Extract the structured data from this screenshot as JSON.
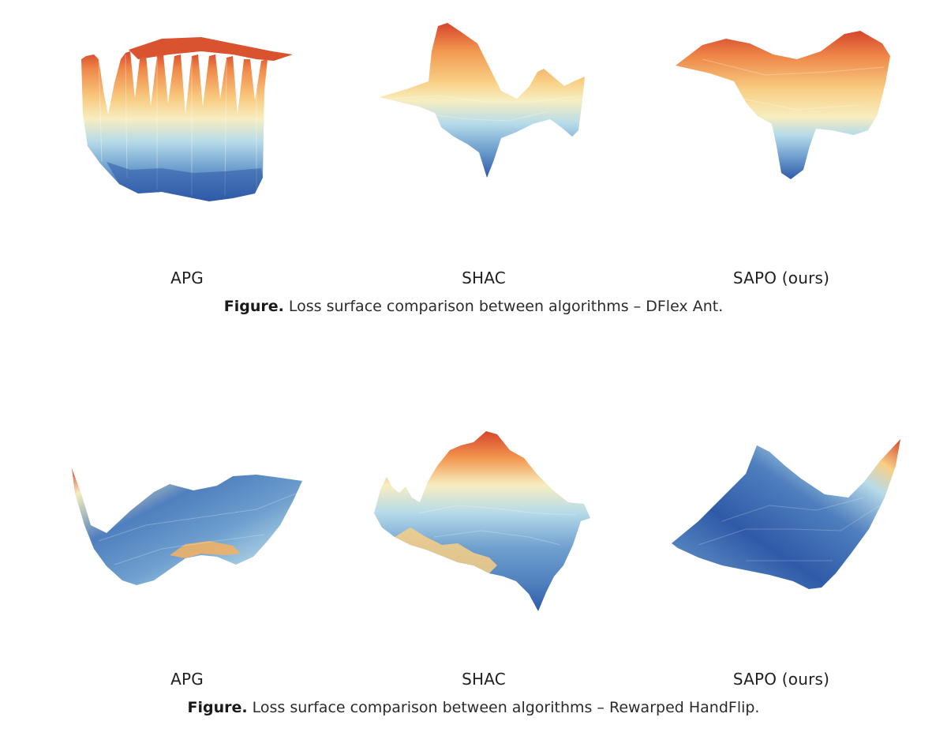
{
  "figures": [
    {
      "caption_label": "Figure.",
      "caption_text": " Loss surface comparison between algorithms – DFlex Ant.",
      "panels": [
        {
          "label": "APG"
        },
        {
          "label": "SHAC"
        },
        {
          "label": "SAPO (ours)"
        }
      ]
    },
    {
      "caption_label": "Figure.",
      "caption_text": " Loss surface comparison between algorithms – Rewarped HandFlip.",
      "panels": [
        {
          "label": "APG"
        },
        {
          "label": "SHAC"
        },
        {
          "label": "SAPO (ours)"
        }
      ]
    }
  ],
  "colors": {
    "high": "#d6452b",
    "mid_high": "#f6b160",
    "mid": "#f7eec0",
    "mid_low": "#b7dbe9",
    "low": "#2f5aa8"
  },
  "colormap": "RdYlBu (red = high loss, blue = low loss)"
}
